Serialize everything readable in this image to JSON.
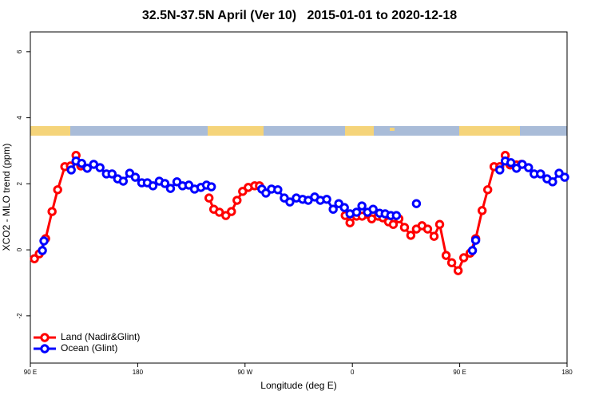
{
  "chart_data": {
    "type": "line",
    "title": "32.5N-37.5N April (Ver 10)   2015-01-01 to 2020-12-18",
    "x_label": "Longitude (deg E)",
    "y_label": "XCO2 - MLO trend (ppm)",
    "xlim": [
      90,
      540
    ],
    "ylim": [
      -3.43,
      6.6
    ],
    "xticks": [
      {
        "value": 90,
        "label": "90 E"
      },
      {
        "value": 180,
        "label": "180"
      },
      {
        "value": 270,
        "label": "90 W"
      },
      {
        "value": 360,
        "label": "0"
      },
      {
        "value": 450,
        "label": "90 E"
      },
      {
        "value": 540,
        "label": "180"
      }
    ],
    "yticks": [
      -2,
      0,
      2,
      4,
      6
    ],
    "legend": "bottom-left",
    "series": [
      {
        "name": "Land (Nadir&Glint)",
        "color": "#ff0000",
        "x": [
          93.4,
          97.5,
          102.8,
          108.2,
          112.9,
          118.9,
          123.6,
          128.3,
          132.3,
          null,
          239.8,
          243.8,
          248.5,
          253.9,
          258.6,
          263.3,
          268,
          272.7,
          278.1,
          282.1,
          null,
          354,
          358,
          363.5,
          368.2,
          376.2,
          381.6,
          385.5,
          390.3,
          394.3,
          399,
          403.7,
          409,
          413.7,
          418.4,
          423.1,
          428.5,
          433.2,
          438.6,
          443.3,
          448.7,
          453.4,
          458.7,
          463.4,
          468.8,
          473.5,
          478.8,
          483.6,
          488.2,
          492.3,
          497.6,
          501.7
        ],
        "values": [
          -0.27,
          -0.12,
          0.34,
          1.16,
          1.82,
          2.52,
          2.54,
          2.86,
          2.54,
          null,
          1.57,
          1.23,
          1.14,
          1.04,
          1.16,
          1.5,
          1.77,
          1.89,
          1.94,
          1.94,
          null,
          1.04,
          0.82,
          1.02,
          1.02,
          0.94,
          1.02,
          0.97,
          0.85,
          0.77,
          0.94,
          0.68,
          0.44,
          0.63,
          0.73,
          0.63,
          0.41,
          0.77,
          -0.17,
          -0.39,
          -0.63,
          -0.24,
          -0.1,
          0.34,
          1.19,
          1.82,
          2.52,
          2.52,
          2.86,
          2.57,
          2.57,
          2.59
        ]
      },
      {
        "name": "Ocean (Glint)",
        "color": "#0000ff",
        "x": [
          100.1,
          101.4,
          null,
          124.3,
          128.3,
          133,
          137.7,
          143.1,
          148.4,
          153.8,
          158.5,
          163.2,
          167.9,
          173.3,
          178,
          183.4,
          188.1,
          192.8,
          198.1,
          202.8,
          207.5,
          212.9,
          217.6,
          222.9,
          227.7,
          233,
          237.7,
          241.8,
          null,
          284.1,
          287.5,
          292.2,
          297.5,
          302.9,
          307.6,
          313,
          318.3,
          323,
          328.4,
          333.1,
          338.5,
          343.9,
          348.6,
          353.3,
          358,
          363.5,
          368,
          372.7,
          377.4,
          382.8,
          387.5,
          392.2,
          396.9,
          null,
          413.7,
          null,
          460.7,
          463.4,
          null,
          483.6,
          488.2,
          492.9,
          497.6,
          502.4,
          507.7,
          512.4,
          517.8,
          523.2,
          527.9,
          533.3,
          538
        ],
        "values": [
          -0.02,
          0.27,
          null,
          2.42,
          2.69,
          2.62,
          2.47,
          2.59,
          2.49,
          2.3,
          2.3,
          2.15,
          2.08,
          2.32,
          2.2,
          2.03,
          2.03,
          1.94,
          2.08,
          2.01,
          1.86,
          2.06,
          1.94,
          1.96,
          1.84,
          1.89,
          1.96,
          1.91,
          null,
          1.84,
          1.72,
          1.84,
          1.82,
          1.57,
          1.45,
          1.57,
          1.53,
          1.5,
          1.6,
          1.5,
          1.53,
          1.23,
          1.4,
          1.28,
          1.09,
          1.14,
          1.33,
          1.14,
          1.23,
          1.11,
          1.09,
          1.04,
          1.04,
          null,
          1.4,
          null,
          -0.02,
          0.29,
          null,
          2.42,
          2.69,
          2.64,
          2.47,
          2.59,
          2.49,
          2.3,
          2.3,
          2.15,
          2.06,
          2.32,
          2.2
        ]
      }
    ]
  }
}
